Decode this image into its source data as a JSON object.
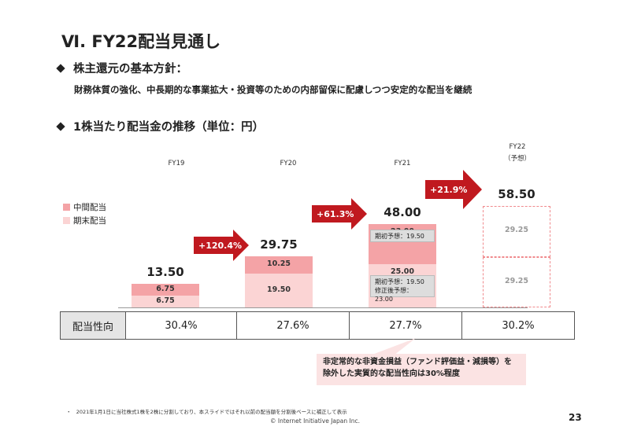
{
  "header": {
    "title": "Ⅵ. FY22配当見通し"
  },
  "policy": {
    "heading": "株主還元の基本方針：",
    "text": "財務体質の強化、中長期的な事業拡大・投資等のための内部留保に配慮しつつ安定的な配当を継続"
  },
  "chart_data": {
    "type": "bar",
    "title": "1株当たり配当金の推移（単位：円）",
    "categories": [
      "FY19",
      "FY20",
      "FY21",
      "FY22"
    ],
    "category_sub": [
      "",
      "",
      "",
      "（予想）"
    ],
    "series": [
      {
        "name": "中間配当",
        "values": [
          6.75,
          10.25,
          23.0,
          29.25
        ],
        "color": "#f4a3a6"
      },
      {
        "name": "期末配当",
        "values": [
          6.75,
          19.5,
          25.0,
          29.25
        ],
        "color": "#fbd4d4"
      }
    ],
    "totals": [
      "13.50",
      "29.75",
      "48.00",
      "58.50"
    ],
    "value_labels": {
      "interim": [
        "6.75",
        "10.25",
        "23.00",
        "29.25"
      ],
      "final": [
        "6.75",
        "19.50",
        "25.00",
        "29.25"
      ]
    },
    "growth": [
      "+120.4%",
      "+61.3%",
      "+21.9%"
    ],
    "notes": {
      "interim_fy21": "期初予想：19.50",
      "final_fy21_1": "期初予想：19.50",
      "final_fy21_2": "修正後予想：23.00"
    },
    "forecast_colors": {
      "border": "#f08a8d"
    },
    "ylim": [
      0,
      60
    ]
  },
  "payout": {
    "label": "配当性向",
    "values": [
      "30.4%",
      "27.6%",
      "27.7%",
      "30.2%"
    ]
  },
  "callout": {
    "line1": "非定常的な非資金損益（ファンド評価益・減損等）を",
    "line2": "除外した実質的な配当性向は30%程度"
  },
  "footer": {
    "bullet": "・",
    "footnote": "2021年1月1日に当社株式1株を2株に分割しており、本スライドではそれ以前の配当額を分割後ベースに補正して表示",
    "copyright": "© Internet Initiative Japan Inc.",
    "page": "23"
  }
}
